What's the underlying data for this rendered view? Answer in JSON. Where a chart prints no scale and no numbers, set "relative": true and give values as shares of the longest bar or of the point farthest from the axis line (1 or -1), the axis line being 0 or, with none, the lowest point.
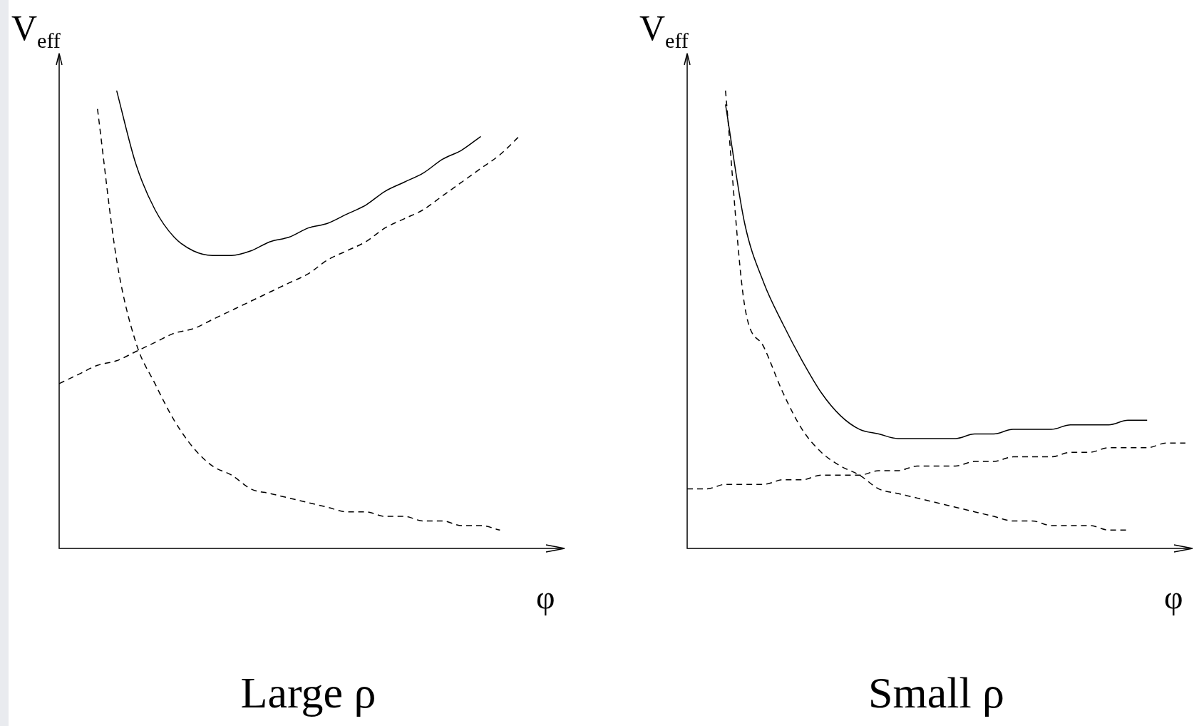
{
  "chart_data": [
    {
      "type": "line",
      "title": "Large ρ",
      "xlabel": "φ",
      "ylabel": "V$_{eff}$",
      "relative": true,
      "categories": [
        null,
        null,
        null,
        null,
        null,
        null,
        null,
        null,
        null,
        null,
        null,
        null,
        null,
        null,
        null,
        null,
        null,
        null,
        null,
        null,
        null,
        null,
        null,
        null,
        null,
        null,
        null
      ],
      "series": [
        {
          "color": "#000000",
          "line_style": "solid",
          "values": [
            null,
            null,
            null,
            1,
            0.84,
            0.74,
            0.68,
            0.65,
            0.64,
            0.64,
            0.65,
            0.67,
            0.68,
            0.7,
            0.71,
            0.73,
            0.75,
            0.78,
            0.8,
            0.82,
            0.85,
            0.87,
            0.9,
            null,
            null,
            null,
            null
          ]
        },
        {
          "color": "#000000",
          "line_style": "dashed",
          "values": [
            0.36,
            0.38,
            0.4,
            0.41,
            0.43,
            0.45,
            0.47,
            0.48,
            0.5,
            0.52,
            0.54,
            0.56,
            0.58,
            0.6,
            0.63,
            0.65,
            0.67,
            0.7,
            0.72,
            0.74,
            0.77,
            0.8,
            0.83,
            0.86,
            0.9,
            null,
            null
          ]
        },
        {
          "color": "#000000",
          "line_style": "dashed",
          "values": [
            null,
            null,
            0.96,
            0.63,
            0.45,
            0.36,
            0.28,
            0.22,
            0.18,
            0.16,
            0.13,
            0.12,
            0.11,
            0.1,
            0.09,
            0.08,
            0.08,
            0.07,
            0.07,
            0.06,
            0.06,
            0.05,
            0.05,
            0.04,
            null,
            null,
            null
          ]
        }
      ]
    },
    {
      "type": "line",
      "title": "Small ρ",
      "xlabel": "φ",
      "ylabel": "V$_{eff}$",
      "relative": true,
      "categories": [
        null,
        null,
        null,
        null,
        null,
        null,
        null,
        null,
        null,
        null,
        null,
        null,
        null,
        null,
        null,
        null,
        null,
        null,
        null,
        null,
        null,
        null,
        null,
        null,
        null,
        null,
        null
      ],
      "series": [
        {
          "color": "#000000",
          "line_style": "solid",
          "values": [
            null,
            null,
            0.97,
            0.71,
            0.58,
            0.49,
            0.41,
            0.34,
            0.29,
            0.26,
            0.25,
            0.24,
            0.24,
            0.24,
            0.24,
            0.25,
            0.25,
            0.26,
            0.26,
            0.26,
            0.27,
            0.27,
            0.27,
            0.28,
            0.28,
            null,
            null
          ]
        },
        {
          "color": "#000000",
          "line_style": "dashed",
          "values": [
            null,
            null,
            1,
            0.53,
            0.44,
            0.34,
            0.26,
            0.21,
            0.18,
            0.16,
            0.13,
            0.12,
            0.11,
            0.1,
            0.09,
            0.08,
            0.07,
            0.06,
            0.06,
            0.05,
            0.05,
            0.05,
            0.04,
            0.04,
            null,
            null,
            null
          ]
        },
        {
          "color": "#000000",
          "line_style": "dashed",
          "values": [
            0.13,
            0.13,
            0.14,
            0.14,
            0.14,
            0.15,
            0.15,
            0.16,
            0.16,
            0.16,
            0.17,
            0.17,
            0.18,
            0.18,
            0.18,
            0.19,
            0.19,
            0.2,
            0.2,
            0.2,
            0.21,
            0.21,
            0.22,
            0.22,
            0.22,
            0.23,
            0.23
          ]
        }
      ]
    }
  ]
}
